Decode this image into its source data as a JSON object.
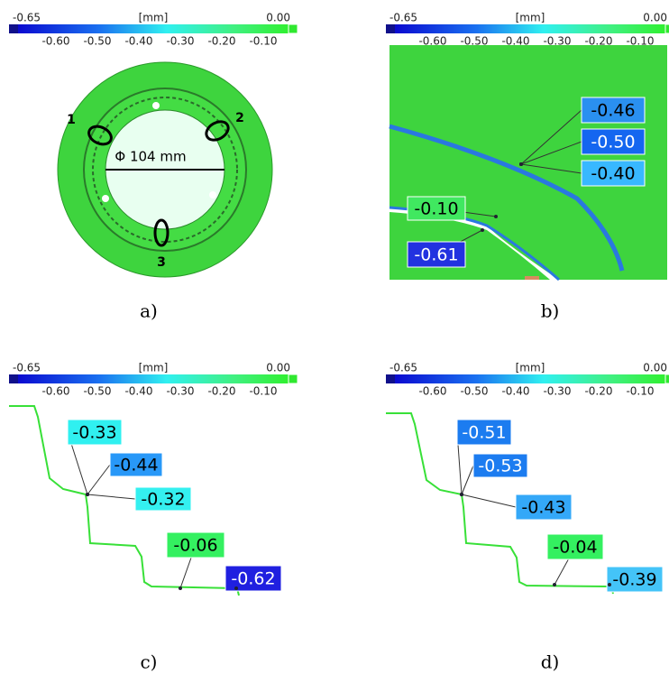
{
  "panels": [
    {
      "caption": "a)",
      "colorbar": {
        "min": "-0.65",
        "unit": "[mm]",
        "max": "0.00",
        "ticks": [
          "-0.60",
          "-0.50",
          "-0.40",
          "-0.30",
          "-0.20",
          "-0.10"
        ]
      },
      "labels": [
        "1",
        "2",
        "3",
        "Φ 104 mm"
      ]
    },
    {
      "caption": "b)",
      "colorbar": {
        "min": "-0.65",
        "unit": "[mm]",
        "max": "0.00",
        "ticks": [
          "-0.60",
          "-0.50",
          "-0.40",
          "-0.30",
          "-0.20",
          "-0.10"
        ]
      },
      "callouts": [
        {
          "text": "-0.46",
          "color": "#2a90f0"
        },
        {
          "text": "-0.50",
          "color": "#1466f0"
        },
        {
          "text": "-0.40",
          "color": "#38b8ff"
        },
        {
          "text": "-0.10",
          "color": "#40e860"
        },
        {
          "text": "-0.61",
          "color": "#2232e0"
        }
      ]
    },
    {
      "caption": "c)",
      "colorbar": {
        "min": "-0.65",
        "unit": "[mm]",
        "max": "0.00",
        "ticks": [
          "-0.60",
          "-0.50",
          "-0.40",
          "-0.30",
          "-0.20",
          "-0.10"
        ]
      },
      "callouts": [
        {
          "text": "-0.33",
          "color": "#30f0f0"
        },
        {
          "text": "-0.44",
          "color": "#2898f8"
        },
        {
          "text": "-0.32",
          "color": "#34f0f0"
        },
        {
          "text": "-0.06",
          "color": "#34f060"
        },
        {
          "text": "-0.62",
          "color": "#2020e0"
        }
      ]
    },
    {
      "caption": "d)",
      "colorbar": {
        "min": "-0.65",
        "unit": "[mm]",
        "max": "0.00",
        "ticks": [
          "-0.60",
          "-0.50",
          "-0.40",
          "-0.30",
          "-0.20",
          "-0.10"
        ]
      },
      "callouts": [
        {
          "text": "-0.51",
          "color": "#1c7cf0"
        },
        {
          "text": "-0.53",
          "color": "#1c7cf0"
        },
        {
          "text": "-0.43",
          "color": "#34a8f8"
        },
        {
          "text": "-0.04",
          "color": "#34f060"
        },
        {
          "text": "-0.39",
          "color": "#44c4f8"
        }
      ]
    }
  ]
}
